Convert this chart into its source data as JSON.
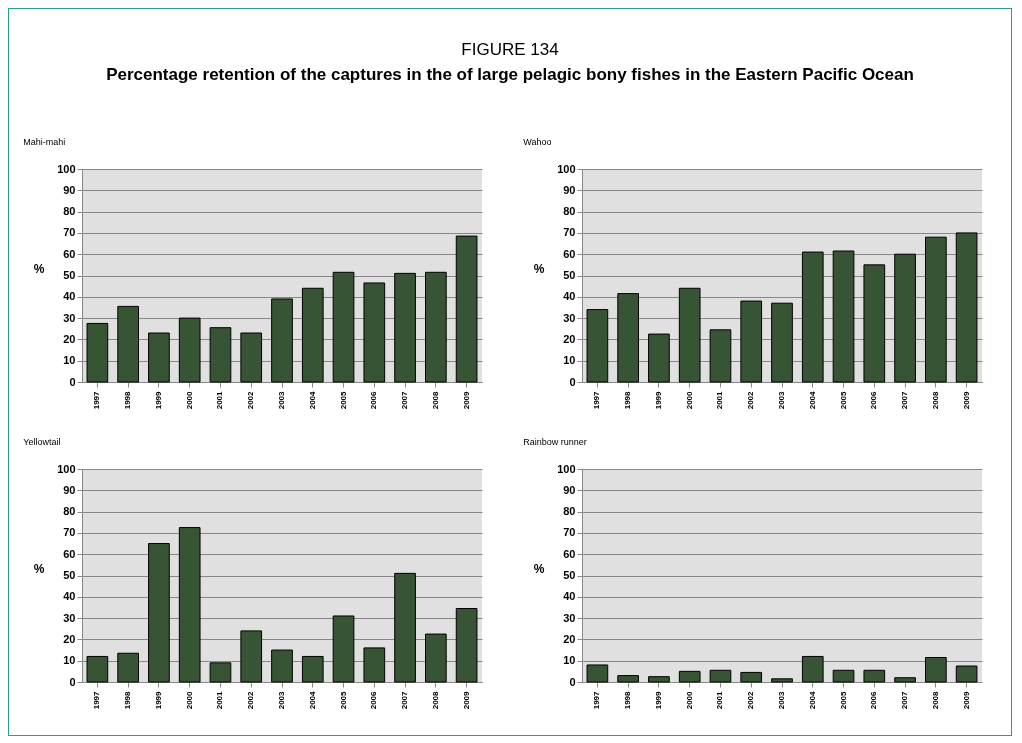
{
  "chart_data": [
    {
      "type": "other",
      "title": "FIGURE 134",
      "subtitle": "Percentage retention of the captures in the of large pelagic bony fishes in the Eastern Pacific Ocean"
    },
    {
      "type": "bar",
      "title": "Mahi-mahi",
      "ylabel": "%",
      "categories": [
        "1997",
        "1998",
        "1999",
        "2000",
        "2001",
        "2002",
        "2003",
        "2004",
        "2005",
        "2006",
        "2007",
        "2008",
        "2009"
      ],
      "values": [
        27.5,
        35.5,
        23,
        30,
        25.5,
        23,
        39,
        44,
        51.5,
        46.5,
        51,
        51.5,
        68.5
      ],
      "color": "#375534",
      "ylim": [
        0,
        100
      ],
      "yticks": [
        0,
        10,
        20,
        30,
        40,
        50,
        60,
        70,
        80,
        90,
        100
      ],
      "grid": "y"
    },
    {
      "type": "bar",
      "title": "Wahoo",
      "ylabel": "%",
      "categories": [
        "1997",
        "1998",
        "1999",
        "2000",
        "2001",
        "2002",
        "2003",
        "2004",
        "2005",
        "2006",
        "2007",
        "2008",
        "2009"
      ],
      "values": [
        34,
        41.5,
        22.5,
        44,
        24.5,
        38,
        37,
        61,
        61.5,
        55,
        60,
        68,
        70
      ],
      "color": "#375534",
      "ylim": [
        0,
        100
      ],
      "yticks": [
        0,
        10,
        20,
        30,
        40,
        50,
        60,
        70,
        80,
        90,
        100
      ],
      "grid": "y"
    },
    {
      "type": "bar",
      "title": "Yellowtail",
      "ylabel": "%",
      "categories": [
        "1997",
        "1998",
        "1999",
        "2000",
        "2001",
        "2002",
        "2003",
        "2004",
        "2005",
        "2006",
        "2007",
        "2008",
        "2009"
      ],
      "values": [
        12,
        13.5,
        65,
        72.5,
        9,
        24,
        15,
        12,
        31,
        16,
        51,
        22.5,
        34.5
      ],
      "color": "#375534",
      "ylim": [
        0,
        100
      ],
      "yticks": [
        0,
        10,
        20,
        30,
        40,
        50,
        60,
        70,
        80,
        90,
        100
      ],
      "grid": "y"
    },
    {
      "type": "bar",
      "title": "Rainbow runner",
      "ylabel": "%",
      "categories": [
        "1997",
        "1998",
        "1999",
        "2000",
        "2001",
        "2002",
        "2003",
        "2004",
        "2005",
        "2006",
        "2007",
        "2008",
        "2009"
      ],
      "values": [
        8,
        3,
        2.5,
        5,
        5.5,
        4.5,
        1.5,
        12,
        5.5,
        5.5,
        2,
        11.5,
        7.5
      ],
      "color": "#375534",
      "ylim": [
        0,
        100
      ],
      "yticks": [
        0,
        10,
        20,
        30,
        40,
        50,
        60,
        70,
        80,
        90,
        100
      ],
      "grid": "y"
    }
  ]
}
